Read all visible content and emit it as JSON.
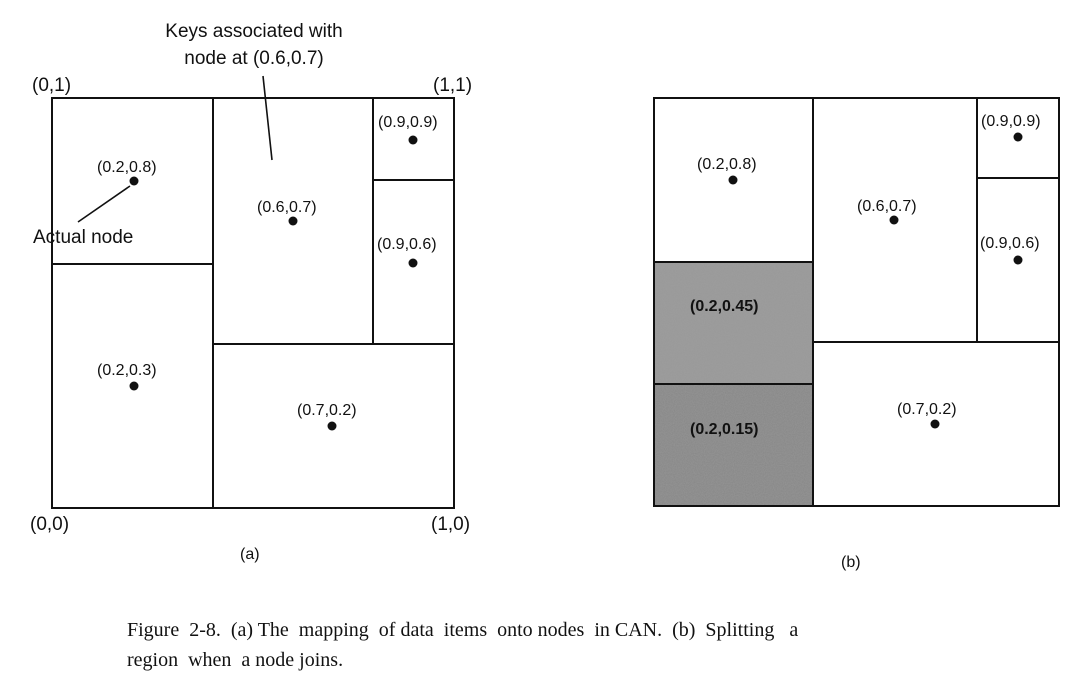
{
  "panel_a": {
    "callout_line1": "Keys associated with",
    "callout_line2": "node at (0.6,0.7)",
    "corner_top_left": "(0,1)",
    "corner_top_right": "(1,1)",
    "corner_bottom_left": "(0,0)",
    "corner_bottom_right": "(1,0)",
    "actual_node_label": "Actual node",
    "nodes": [
      "(0.2,0.8)",
      "(0.6,0.7)",
      "(0.9,0.9)",
      "(0.9,0.6)",
      "(0.2,0.3)",
      "(0.7,0.2)"
    ],
    "sublabel": "(a)"
  },
  "panel_b": {
    "nodes": [
      "(0.2,0.8)",
      "(0.6,0.7)",
      "(0.9,0.9)",
      "(0.9,0.6)",
      "(0.2,0.45)",
      "(0.2,0.15)",
      "(0.7,0.2)"
    ],
    "sublabel": "(b)"
  },
  "caption": {
    "line1": "Figure  2-8.  (a) The  mapping  of data  items  onto nodes  in CAN.  (b)  Splitting   a",
    "line2": "region  when  a node joins."
  },
  "colors": {
    "line": "#111111",
    "split_fill": "#8c8c8c",
    "split_fill_light": "#b4b4b4"
  }
}
